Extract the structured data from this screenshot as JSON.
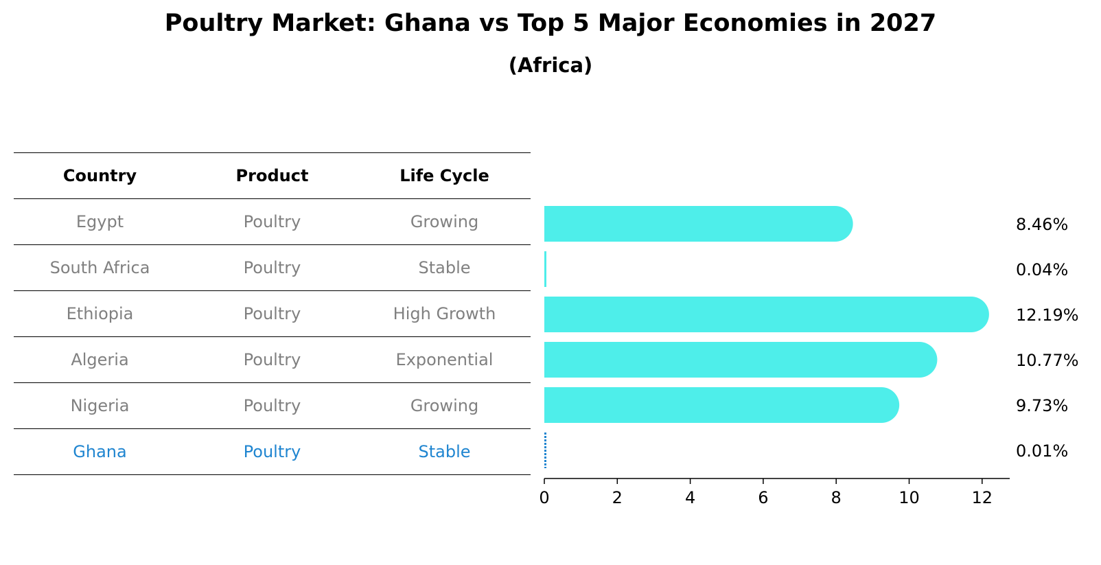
{
  "title": "Poultry Market: Ghana vs Top 5 Major Economies in 2027",
  "subtitle": "(Africa)",
  "table": {
    "headers": [
      "Country",
      "Product",
      "Life Cycle"
    ],
    "rows": [
      {
        "country": "Egypt",
        "product": "Poultry",
        "life_cycle": "Growing"
      },
      {
        "country": "South Africa",
        "product": "Poultry",
        "life_cycle": "Stable"
      },
      {
        "country": "Ethiopia",
        "product": "Poultry",
        "life_cycle": "High Growth"
      },
      {
        "country": "Algeria",
        "product": "Poultry",
        "life_cycle": "Exponential"
      },
      {
        "country": "Nigeria",
        "product": "Poultry",
        "life_cycle": "Growing"
      },
      {
        "country": "Ghana",
        "product": "Poultry",
        "life_cycle": "Stable"
      }
    ],
    "highlight_color": "#1f85d0",
    "text_color": "#808080"
  },
  "chart_data": {
    "type": "bar",
    "orientation": "horizontal",
    "categories": [
      "Egypt",
      "South Africa",
      "Ethiopia",
      "Algeria",
      "Nigeria",
      "Ghana"
    ],
    "values": [
      8.46,
      0.04,
      12.19,
      10.77,
      9.73,
      0.01
    ],
    "value_labels": [
      "8.46%",
      "0.04%",
      "12.19%",
      "10.77%",
      "9.73%",
      "0.01%"
    ],
    "xticks": [
      0,
      2,
      4,
      6,
      8,
      10,
      12
    ],
    "xlim": [
      0,
      12.8
    ],
    "bar_color": "#4eeeea",
    "highlight_color": "#1f85d0",
    "grid": false,
    "xlabel": "",
    "ylabel": ""
  }
}
